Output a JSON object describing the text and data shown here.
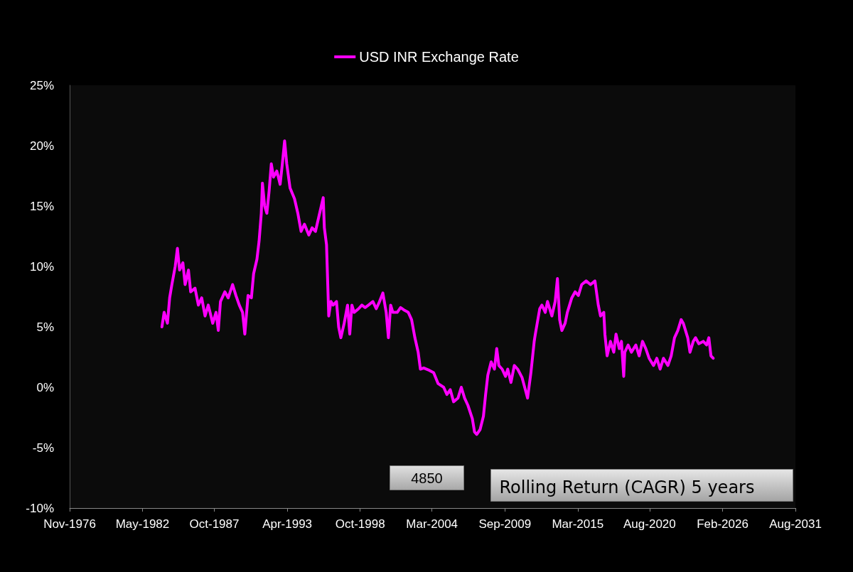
{
  "chart_data": {
    "type": "line",
    "series": [
      {
        "name": "USD INR Exchange Rate",
        "color": "#ff00ff",
        "x": [
          "1983-11",
          "1984-01",
          "1984-04",
          "1984-06",
          "1984-08",
          "1984-11",
          "1985-01",
          "1985-03",
          "1985-06",
          "1985-08",
          "1985-11",
          "1986-01",
          "1986-05",
          "1986-08",
          "1986-11",
          "1987-02",
          "1987-05",
          "1987-09",
          "1987-12",
          "1988-02",
          "1988-04",
          "1988-08",
          "1988-11",
          "1989-03",
          "1989-06",
          "1989-09",
          "1989-12",
          "1990-02",
          "1990-05",
          "1990-08",
          "1990-10",
          "1991-01",
          "1991-03",
          "1991-05",
          "1991-06",
          "1991-08",
          "1991-10",
          "1991-12",
          "1992-02",
          "1992-04",
          "1992-07",
          "1992-10",
          "1992-12",
          "1993-02",
          "1993-04",
          "1993-07",
          "1993-11",
          "1994-02",
          "1994-05",
          "1994-08",
          "1994-12",
          "1995-03",
          "1995-06",
          "1995-09",
          "1996-01",
          "1996-02",
          "1996-04",
          "1996-06",
          "1996-08",
          "1996-10",
          "1997-01",
          "1997-03",
          "1997-05",
          "1997-08",
          "1997-11",
          "1998-01",
          "1998-03",
          "1998-05",
          "1998-09",
          "1998-12",
          "1999-03",
          "1999-06",
          "1999-10",
          "2000-01",
          "2000-04",
          "2000-07",
          "2000-10",
          "2000-12",
          "2001-02",
          "2001-04",
          "2001-08",
          "2001-11",
          "2002-02",
          "2002-06",
          "2002-09",
          "2002-12",
          "2003-03",
          "2003-05",
          "2003-08",
          "2004-01",
          "2004-05",
          "2004-09",
          "2005-02",
          "2005-05",
          "2005-08",
          "2005-11",
          "2006-03",
          "2006-06",
          "2006-09",
          "2006-12",
          "2007-04",
          "2007-06",
          "2007-08",
          "2007-11",
          "2008-02",
          "2008-04",
          "2008-06",
          "2008-09",
          "2008-12",
          "2009-02",
          "2009-04",
          "2009-07",
          "2009-10",
          "2009-12",
          "2010-03",
          "2010-06",
          "2010-09",
          "2011-01",
          "2011-04",
          "2011-06",
          "2011-09",
          "2011-12",
          "2012-01",
          "2012-05",
          "2012-07",
          "2012-10",
          "2012-12",
          "2013-04",
          "2013-07",
          "2013-09",
          "2013-11",
          "2014-01",
          "2014-04",
          "2014-06",
          "2014-10",
          "2015-01",
          "2015-04",
          "2015-07",
          "2015-11",
          "2016-03",
          "2016-07",
          "2016-10",
          "2016-12",
          "2017-03",
          "2017-04",
          "2017-06",
          "2017-09",
          "2017-12",
          "2018-02",
          "2018-05",
          "2018-07",
          "2018-09",
          "2018-10",
          "2019-01",
          "2019-04",
          "2019-08",
          "2019-11",
          "2020-02",
          "2020-05",
          "2020-08",
          "2020-12",
          "2021-03",
          "2021-06",
          "2021-09",
          "2022-01",
          "2022-04",
          "2022-07",
          "2022-10",
          "2023-01",
          "2023-03",
          "2023-07",
          "2023-09",
          "2023-12",
          "2024-02",
          "2024-05",
          "2024-09",
          "2024-12",
          "2025-02",
          "2025-04",
          "2025-06"
        ],
        "values": [
          5.0,
          6.2,
          5.3,
          7.4,
          8.5,
          10.0,
          11.5,
          9.7,
          10.3,
          8.5,
          9.7,
          7.9,
          8.2,
          6.8,
          7.4,
          5.9,
          6.8,
          5.3,
          6.2,
          4.7,
          7.1,
          7.9,
          7.4,
          8.5,
          7.6,
          6.8,
          6.2,
          4.4,
          7.6,
          7.4,
          9.4,
          10.6,
          12.1,
          14.4,
          16.9,
          15.0,
          14.4,
          16.2,
          18.5,
          17.4,
          17.9,
          16.8,
          18.5,
          20.4,
          18.5,
          16.5,
          15.6,
          14.4,
          12.9,
          13.5,
          12.6,
          13.2,
          12.9,
          14.1,
          15.7,
          13.2,
          11.8,
          5.9,
          7.1,
          6.8,
          7.1,
          5.0,
          4.1,
          5.3,
          6.8,
          4.4,
          6.8,
          6.2,
          6.5,
          6.8,
          6.6,
          6.8,
          7.1,
          6.5,
          7.1,
          7.8,
          6.2,
          4.1,
          6.8,
          6.2,
          6.2,
          6.6,
          6.4,
          6.2,
          5.6,
          4.1,
          2.9,
          1.5,
          1.6,
          1.4,
          1.2,
          0.3,
          0.0,
          -0.6,
          -0.2,
          -1.2,
          -0.9,
          0.0,
          -0.9,
          -1.5,
          -2.6,
          -3.7,
          -3.9,
          -3.5,
          -2.4,
          -0.6,
          1.0,
          2.1,
          1.5,
          3.2,
          1.8,
          1.5,
          0.9,
          1.5,
          0.4,
          1.8,
          1.5,
          0.8,
          -0.2,
          -0.9,
          1.2,
          3.8,
          4.4,
          6.5,
          6.8,
          6.2,
          7.1,
          5.9,
          7.1,
          9.0,
          5.6,
          4.7,
          5.3,
          6.2,
          7.4,
          7.9,
          7.6,
          8.5,
          8.8,
          8.5,
          8.8,
          6.8,
          5.9,
          6.2,
          4.4,
          2.6,
          3.8,
          2.9,
          4.4,
          3.2,
          3.8,
          0.9,
          2.9,
          3.5,
          2.9,
          3.5,
          2.6,
          3.8,
          3.2,
          2.4,
          1.8,
          2.4,
          1.5,
          2.4,
          1.8,
          2.6,
          4.1,
          4.7,
          5.6,
          5.3,
          4.1,
          2.9,
          3.8,
          4.1,
          3.6,
          3.8,
          3.5,
          4.1,
          2.6,
          2.4
        ]
      }
    ],
    "xlim": [
      "1976-11-15",
      "2031-08-15"
    ],
    "xticks": [
      {
        "value": "1976-11-15",
        "label": "Nov-1976"
      },
      {
        "value": "1982-05-15",
        "label": "May-1982"
      },
      {
        "value": "1987-10-15",
        "label": "Oct-1987"
      },
      {
        "value": "1993-04-15",
        "label": "Apr-1993"
      },
      {
        "value": "1998-10-15",
        "label": "Oct-1998"
      },
      {
        "value": "2004-03-15",
        "label": "Mar-2004"
      },
      {
        "value": "2009-09-15",
        "label": "Sep-2009"
      },
      {
        "value": "2015-03-15",
        "label": "Mar-2015"
      },
      {
        "value": "2020-08-15",
        "label": "Aug-2020"
      },
      {
        "value": "2026-02-15",
        "label": "Feb-2026"
      },
      {
        "value": "2031-08-15",
        "label": "Aug-2031"
      }
    ],
    "ylim": [
      -10,
      25
    ],
    "yticks": [
      {
        "value": -10,
        "label": "-10%"
      },
      {
        "value": -5,
        "label": "-5%"
      },
      {
        "value": 0,
        "label": "0%"
      },
      {
        "value": 5,
        "label": "5%"
      },
      {
        "value": 10,
        "label": "10%"
      },
      {
        "value": 15,
        "label": "15%"
      },
      {
        "value": 20,
        "label": "20%"
      },
      {
        "value": 25,
        "label": "25%"
      }
    ],
    "annotations": [
      "4850",
      "Rolling Return (CAGR) 5 years"
    ],
    "grid": false,
    "legend": "top",
    "marker": "none",
    "line_style": "solid"
  }
}
